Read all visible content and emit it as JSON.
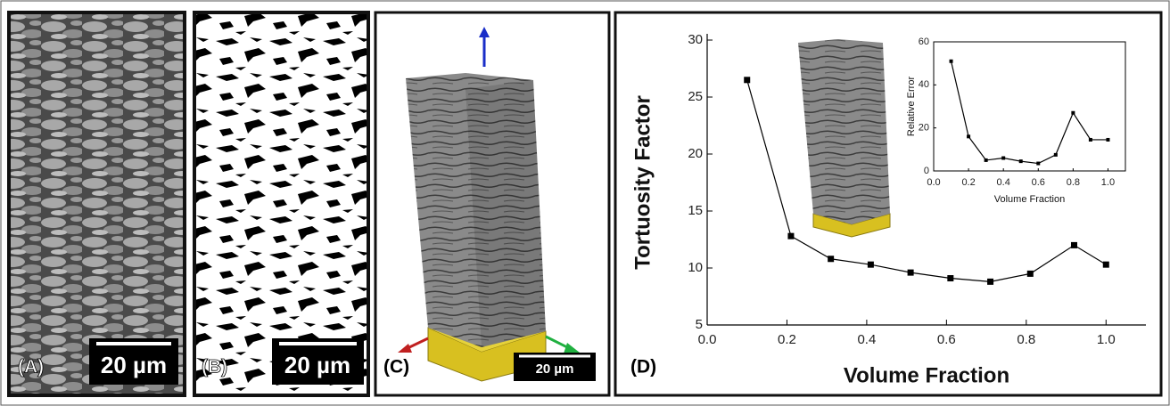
{
  "panels": [
    {
      "label": "(A)",
      "scale_bar": "20 µm"
    },
    {
      "label": "(B)",
      "scale_bar": "20 µm"
    },
    {
      "label": "(C)",
      "scale_bar": "20 µm"
    },
    {
      "label": "(D)"
    }
  ],
  "chart_data": [
    {
      "type": "line",
      "xlabel": "Volume Fraction",
      "ylabel": "Tortuosity Factor",
      "x": [
        0.1,
        0.21,
        0.31,
        0.41,
        0.51,
        0.61,
        0.71,
        0.81,
        0.92,
        1.0
      ],
      "values": [
        26.5,
        12.8,
        10.8,
        10.3,
        9.6,
        9.1,
        8.8,
        9.5,
        12.0,
        10.3
      ],
      "color": "#000000",
      "marker": "square",
      "box": false,
      "xlim": [
        0,
        1.1
      ],
      "ylim": [
        5,
        30
      ],
      "xticks": [
        {
          "value": 0,
          "label": "0.0"
        },
        {
          "value": 0.2,
          "label": "0.2"
        },
        {
          "value": 0.4,
          "label": "0.4"
        },
        {
          "value": 0.6,
          "label": "0.6"
        },
        {
          "value": 0.8,
          "label": "0.8"
        },
        {
          "value": 1,
          "label": "1.0"
        }
      ],
      "yticks": [
        5,
        10,
        15,
        20,
        25,
        30
      ]
    },
    {
      "type": "line",
      "xlabel": "Volume Fraction",
      "ylabel": "Relative Error",
      "x": [
        0.1,
        0.2,
        0.3,
        0.4,
        0.5,
        0.6,
        0.7,
        0.8,
        0.9,
        1.0
      ],
      "values": [
        51,
        16,
        5,
        6,
        4.5,
        3.5,
        7.5,
        27,
        14.5,
        14.5
      ],
      "color": "#000000",
      "marker": "square",
      "box": true,
      "xlim": [
        0,
        1.1
      ],
      "ylim": [
        0,
        60
      ],
      "xticks": [
        {
          "value": 0,
          "label": "0.0"
        },
        {
          "value": 0.2,
          "label": "0.2"
        },
        {
          "value": 0.4,
          "label": "0.4"
        },
        {
          "value": 0.6,
          "label": "0.6"
        },
        {
          "value": 0.8,
          "label": "0.8"
        },
        {
          "value": 1,
          "label": "1.0"
        }
      ],
      "yticks": [
        0,
        20,
        40,
        60
      ]
    }
  ]
}
